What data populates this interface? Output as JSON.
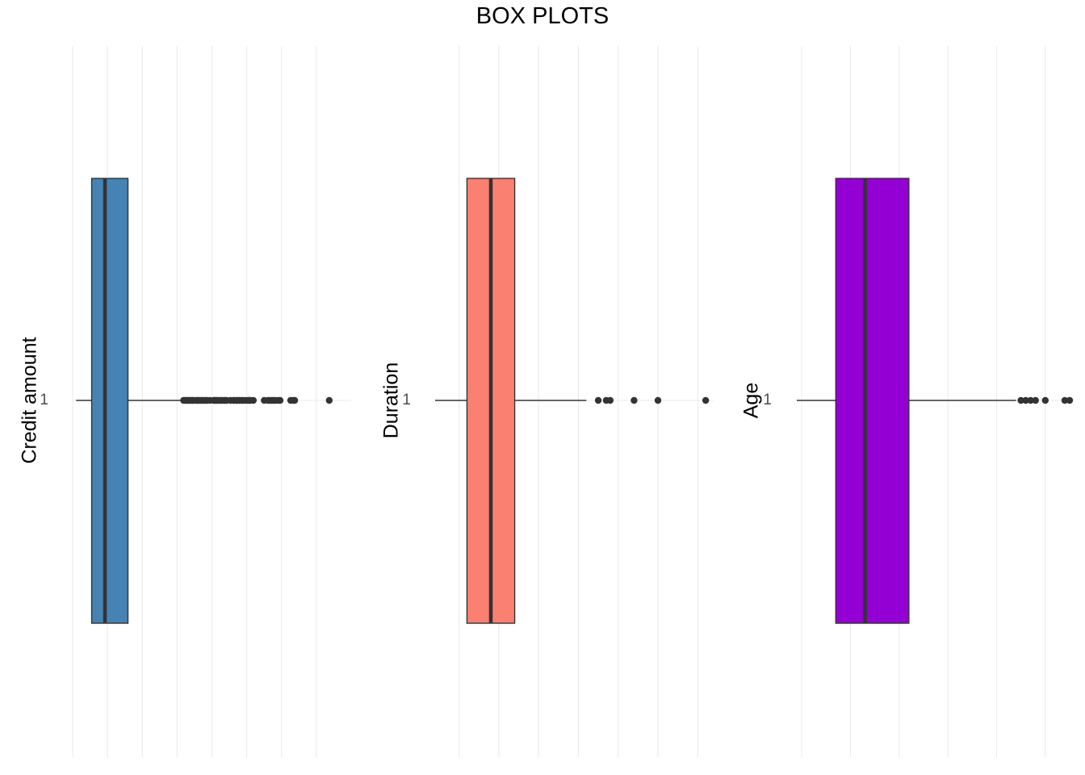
{
  "title": "BOX PLOTS",
  "chart_data": [
    {
      "type": "boxplot",
      "ylabel": "Credit amount",
      "y_tick": "1",
      "color": "#4682b4",
      "orientation": "horizontal",
      "xlim": [
        0,
        20000
      ],
      "x_gridlines": [
        0,
        2500,
        5000,
        7500,
        10000,
        12500,
        15000,
        17500
      ],
      "grid": true,
      "box": {
        "min": 250,
        "q1": 1366,
        "median": 2320,
        "q3": 3972,
        "whisker_high": 7882
      },
      "outliers": [
        7966,
        8065,
        8133,
        8229,
        8318,
        8386,
        8471,
        8588,
        8613,
        8648,
        8858,
        8947,
        9034,
        9157,
        9271,
        9398,
        9566,
        9629,
        9857,
        10127,
        10144,
        10222,
        10297,
        10366,
        10477,
        10623,
        10722,
        10875,
        10961,
        11054,
        11328,
        11560,
        11590,
        11760,
        11816,
        11938,
        11998,
        12169,
        12204,
        12389,
        12579,
        12680,
        12749,
        12976,
        13756,
        14027,
        14179,
        14318,
        14421,
        14555,
        14782,
        14896,
        15653,
        15857,
        15945,
        18424
      ]
    },
    {
      "type": "boxplot",
      "ylabel": "Duration",
      "y_tick": "1",
      "color": "#fa8072",
      "orientation": "horizontal",
      "xlim": [
        4,
        74
      ],
      "x_gridlines": [
        0,
        10,
        20,
        30,
        40,
        50,
        60,
        70
      ],
      "grid": true,
      "box": {
        "min": 4,
        "q1": 12,
        "median": 18,
        "q3": 24,
        "whisker_high": 42
      },
      "outliers": [
        45,
        47,
        48,
        54,
        60,
        72
      ]
    },
    {
      "type": "boxplot",
      "ylabel": "Age",
      "y_tick": "1",
      "color": "#9400d3",
      "orientation": "horizontal",
      "xlim": [
        19,
        75
      ],
      "x_gridlines": [
        20,
        30,
        40,
        50,
        60,
        70
      ],
      "grid": true,
      "box": {
        "min": 19,
        "q1": 27,
        "median": 33,
        "q3": 42,
        "whisker_high": 64
      },
      "outliers": [
        65,
        66,
        67,
        68,
        70,
        74,
        75
      ]
    }
  ]
}
